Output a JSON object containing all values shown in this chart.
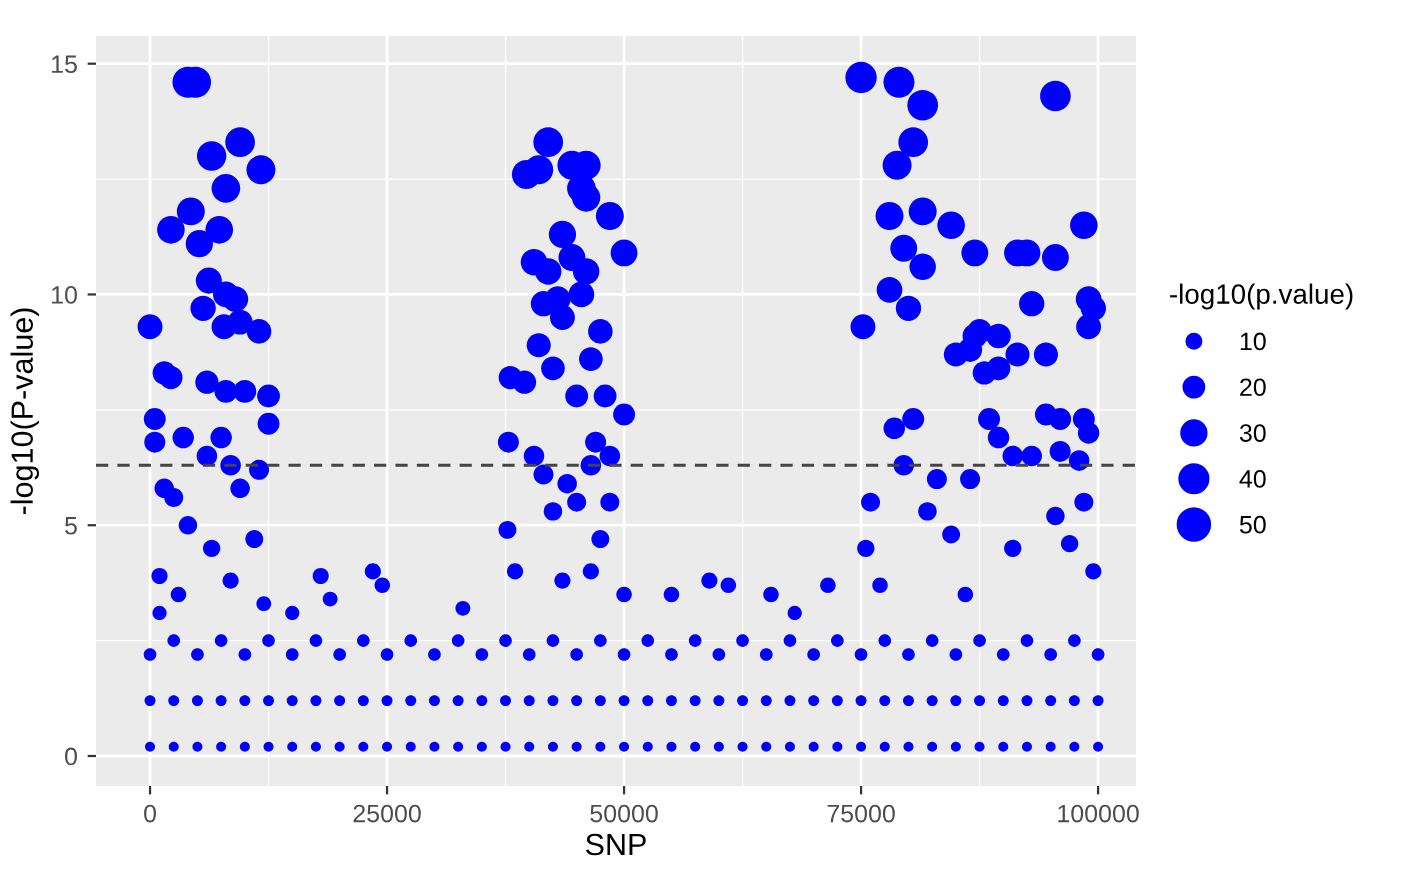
{
  "chart_data": {
    "type": "bubble",
    "xlabel": "SNP",
    "ylabel": "-log10(P-value)",
    "legend_title": "-log10(p.value)",
    "grid": true,
    "xlim": [
      -5700,
      104000
    ],
    "xticks": [
      0,
      25000,
      50000,
      75000,
      100000
    ],
    "ylim": [
      -0.65,
      15.6
    ],
    "yticks": [
      0,
      5,
      10,
      15
    ],
    "size_legend": [
      10,
      20,
      30,
      40,
      50
    ],
    "ref_lines": [
      {
        "axis": "y",
        "value": 6.3,
        "color": "#444444",
        "line_style": "dashed"
      }
    ],
    "series": [
      {
        "color": "#0000ff",
        "x": [
          0,
          4000,
          4800,
          2200,
          4300,
          5200,
          6500,
          7300,
          8000,
          9500,
          11700,
          6200,
          5600,
          8000,
          9000,
          7800,
          9500,
          11500,
          1500,
          2200,
          6000,
          8000,
          10000,
          12500,
          500,
          500,
          3500,
          7500,
          12500,
          6000,
          8500,
          11500,
          1500,
          2500,
          9500,
          4000,
          6500,
          11000,
          1000,
          3000,
          8500,
          12000,
          1000
        ],
        "values": [
          9.3,
          14.6,
          14.6,
          11.4,
          11.8,
          11.1,
          13,
          11.4,
          12.3,
          13.3,
          12.7,
          10.3,
          9.7,
          10,
          9.9,
          9.3,
          9.4,
          9.2,
          8.3,
          8.2,
          8.1,
          7.9,
          7.9,
          7.8,
          7.3,
          6.8,
          6.9,
          6.9,
          7.2,
          6.5,
          6.3,
          6.2,
          5.8,
          5.6,
          5.8,
          5.0,
          4.5,
          4.7,
          3.9,
          3.5,
          3.8,
          3.3,
          3.1
        ],
        "sizes": [
          31,
          48,
          48,
          38,
          39,
          37,
          43,
          38,
          41,
          44,
          42,
          34,
          32,
          33,
          33,
          31,
          31,
          30,
          27,
          27,
          27,
          26,
          26,
          26,
          24,
          22,
          23,
          23,
          24,
          21,
          21,
          20,
          19,
          18,
          19,
          17,
          15,
          16,
          13,
          12,
          13,
          11,
          10
        ]
      },
      {
        "color": "#0000ff",
        "x": [
          39700,
          41000,
          42000,
          44500,
          46000,
          45500,
          46000,
          48500,
          43500,
          44500,
          42000,
          46000,
          50000,
          40500,
          43000,
          45500,
          41500,
          43500,
          47500,
          41000,
          38000,
          39500,
          42500,
          46500,
          45000,
          48000,
          50000,
          37800,
          40500,
          47000,
          48500,
          41500,
          44000,
          46500,
          42500,
          45000,
          48500,
          37700,
          38500,
          43500,
          47500,
          50000,
          46500
        ],
        "values": [
          12.6,
          12.7,
          13.3,
          12.8,
          12.8,
          12.3,
          12.1,
          11.7,
          11.3,
          10.8,
          10.5,
          10.5,
          10.9,
          10.7,
          9.9,
          10,
          9.8,
          9.5,
          9.2,
          8.9,
          8.2,
          8.1,
          8.4,
          8.6,
          7.8,
          7.8,
          7.4,
          6.8,
          6.5,
          6.8,
          6.5,
          6.1,
          5.9,
          6.3,
          5.3,
          5.5,
          5.5,
          4.9,
          4.0,
          3.8,
          4.7,
          3.5,
          4.0
        ],
        "sizes": [
          42,
          42,
          44,
          42,
          42,
          41,
          40,
          39,
          37,
          36,
          35,
          35,
          36,
          35,
          33,
          33,
          32,
          31,
          30,
          29,
          27,
          27,
          28,
          28,
          26,
          26,
          24,
          22,
          21,
          22,
          21,
          20,
          19,
          21,
          17,
          18,
          18,
          16,
          13,
          13,
          16,
          12,
          13
        ]
      },
      {
        "color": "#0000ff",
        "x": [
          75000,
          79000,
          81500,
          80500,
          78800,
          78000,
          81500,
          84500,
          79500,
          81500,
          87000,
          91500,
          92500,
          95500,
          98500,
          95500,
          78000,
          80000,
          75200,
          93000,
          99000,
          99500,
          99000,
          87000,
          87500,
          89500,
          86500,
          85000,
          91500,
          94500,
          89500,
          88000,
          78500,
          80500,
          88500,
          94500,
          96000,
          98500,
          99000,
          89500,
          79500,
          83000,
          86500,
          91000,
          93000,
          96000,
          98000,
          76000,
          82000,
          84500,
          91000,
          95500,
          98500,
          75500,
          77000,
          86000,
          99500,
          97000
        ],
        "values": [
          14.7,
          14.6,
          14.1,
          13.3,
          12.8,
          11.7,
          11.8,
          11.5,
          11,
          10.6,
          10.9,
          10.9,
          10.9,
          10.8,
          11.5,
          14.3,
          10.1,
          9.7,
          9.3,
          9.8,
          9.9,
          9.7,
          9.3,
          9.1,
          9.2,
          9.1,
          8.8,
          8.7,
          8.7,
          8.7,
          8.4,
          8.3,
          7.1,
          7.3,
          7.3,
          7.4,
          7.3,
          7.3,
          7,
          6.9,
          6.3,
          6.0,
          6.0,
          6.5,
          6.5,
          6.6,
          6.4,
          5.5,
          5.3,
          4.8,
          4.5,
          5.2,
          5.5,
          4.5,
          3.7,
          3.5,
          4.0,
          4.6
        ],
        "sizes": [
          49,
          48,
          47,
          44,
          42,
          39,
          39,
          38,
          36,
          35,
          36,
          36,
          36,
          36,
          38,
          47,
          33,
          32,
          31,
          32,
          33,
          32,
          31,
          30,
          30,
          30,
          29,
          29,
          29,
          29,
          28,
          27,
          23,
          24,
          24,
          24,
          24,
          24,
          23,
          23,
          21,
          20,
          20,
          21,
          21,
          22,
          21,
          18,
          17,
          16,
          15,
          17,
          18,
          15,
          12,
          12,
          13,
          15
        ]
      },
      {
        "color": "#0000ff",
        "x": [
          18000,
          23500,
          24500,
          55000,
          59000,
          61000,
          65500,
          71500,
          19000,
          15000,
          33000,
          68000
        ],
        "values": [
          3.9,
          4.0,
          3.7,
          3.5,
          3.8,
          3.7,
          3.5,
          3.7,
          3.4,
          3.1,
          3.2,
          3.1
        ],
        "sizes": [
          13,
          13,
          12,
          12,
          13,
          12,
          12,
          12,
          11,
          10,
          11,
          10
        ]
      },
      {
        "color": "#0000ff",
        "x": [
          0,
          2500,
          5000,
          7500,
          10000,
          12500,
          15000,
          17500,
          20000,
          22500,
          25000,
          27500,
          30000,
          32500,
          35000,
          37500,
          40000,
          42500,
          45000,
          47500,
          50000,
          52500,
          55000,
          57500,
          60000,
          62500,
          65000,
          67500,
          70000,
          72500,
          75000,
          77500,
          80000,
          82500,
          85000,
          87500,
          90000,
          92500,
          95000,
          97500,
          100000
        ],
        "values": [
          2.2,
          2.5,
          2.2,
          2.5,
          2.2,
          2.5,
          2.2,
          2.5,
          2.2,
          2.5,
          2.2,
          2.5,
          2.2,
          2.5,
          2.2,
          2.5,
          2.2,
          2.5,
          2.2,
          2.5,
          2.2,
          2.5,
          2.2,
          2.5,
          2.2,
          2.5,
          2.2,
          2.5,
          2.2,
          2.5,
          2.2,
          2.5,
          2.2,
          2.5,
          2.2,
          2.5,
          2.2,
          2.5,
          2.2,
          2.5,
          2.2
        ],
        "sizes": [
          8,
          8,
          8,
          8,
          8,
          8,
          8,
          8,
          8,
          8,
          8,
          8,
          8,
          8,
          8,
          8,
          8,
          8,
          8,
          8,
          8,
          8,
          8,
          8,
          8,
          8,
          8,
          8,
          8,
          8,
          8,
          8,
          8,
          8,
          8,
          8,
          8,
          8,
          8,
          8,
          8
        ]
      },
      {
        "color": "#0000ff",
        "x": [
          0,
          2500,
          5000,
          7500,
          10000,
          12500,
          15000,
          17500,
          20000,
          22500,
          25000,
          27500,
          30000,
          32500,
          35000,
          37500,
          40000,
          42500,
          45000,
          47500,
          50000,
          52500,
          55000,
          57500,
          60000,
          62500,
          65000,
          67500,
          70000,
          72500,
          75000,
          77500,
          80000,
          82500,
          85000,
          87500,
          90000,
          92500,
          95000,
          97500,
          100000
        ],
        "values": [
          1.2,
          1.2,
          1.2,
          1.2,
          1.2,
          1.2,
          1.2,
          1.2,
          1.2,
          1.2,
          1.2,
          1.2,
          1.2,
          1.2,
          1.2,
          1.2,
          1.2,
          1.2,
          1.2,
          1.2,
          1.2,
          1.2,
          1.2,
          1.2,
          1.2,
          1.2,
          1.2,
          1.2,
          1.2,
          1.2,
          1.2,
          1.2,
          1.2,
          1.2,
          1.2,
          1.2,
          1.2,
          1.2,
          1.2,
          1.2,
          1.2
        ],
        "sizes": [
          6,
          6,
          6,
          6,
          6,
          6,
          6,
          6,
          6,
          6,
          6,
          6,
          6,
          6,
          6,
          6,
          6,
          6,
          6,
          6,
          6,
          6,
          6,
          6,
          6,
          6,
          6,
          6,
          6,
          6,
          6,
          6,
          6,
          6,
          6,
          6,
          6,
          6,
          6,
          6,
          6
        ]
      },
      {
        "color": "#0000ff",
        "x": [
          0,
          2500,
          5000,
          7500,
          10000,
          12500,
          15000,
          17500,
          20000,
          22500,
          25000,
          27500,
          30000,
          32500,
          35000,
          37500,
          40000,
          42500,
          45000,
          47500,
          50000,
          52500,
          55000,
          57500,
          60000,
          62500,
          65000,
          67500,
          70000,
          72500,
          75000,
          77500,
          80000,
          82500,
          85000,
          87500,
          90000,
          92500,
          95000,
          97500,
          100000
        ],
        "values": [
          0.2,
          0.2,
          0.2,
          0.2,
          0.2,
          0.2,
          0.2,
          0.2,
          0.2,
          0.2,
          0.2,
          0.2,
          0.2,
          0.2,
          0.2,
          0.2,
          0.2,
          0.2,
          0.2,
          0.2,
          0.2,
          0.2,
          0.2,
          0.2,
          0.2,
          0.2,
          0.2,
          0.2,
          0.2,
          0.2,
          0.2,
          0.2,
          0.2,
          0.2,
          0.2,
          0.2,
          0.2,
          0.2,
          0.2,
          0.2,
          0.2
        ],
        "sizes": [
          5,
          5,
          5,
          5,
          5,
          5,
          5,
          5,
          5,
          5,
          5,
          5,
          5,
          5,
          5,
          5,
          5,
          5,
          5,
          5,
          5,
          5,
          5,
          5,
          5,
          5,
          5,
          5,
          5,
          5,
          5,
          5,
          5,
          5,
          5,
          5,
          5,
          5,
          5,
          5,
          5
        ]
      }
    ]
  }
}
